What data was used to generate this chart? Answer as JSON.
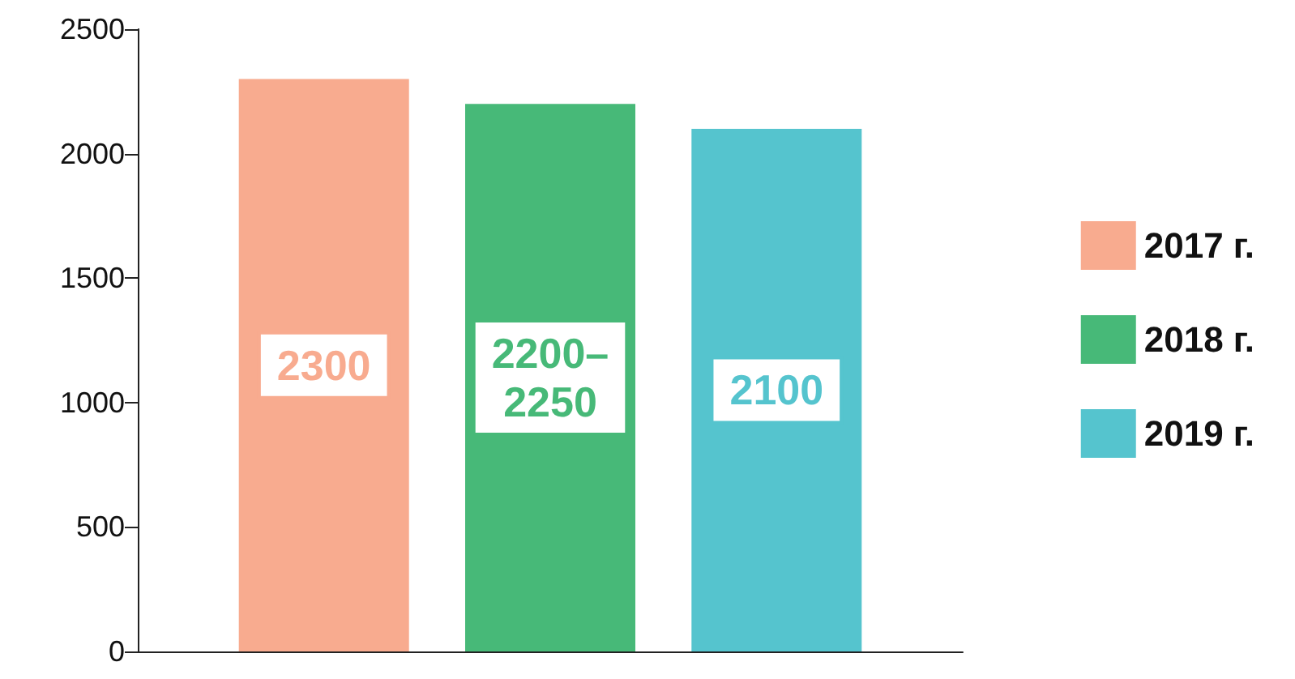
{
  "chart_data": {
    "type": "bar",
    "categories": [
      null
    ],
    "series": [
      {
        "name": "2017 г.",
        "color": "#f8ab8f",
        "values": [
          2300
        ],
        "value_labels": [
          "2300"
        ]
      },
      {
        "name": "2018 г.",
        "color": "#47b978",
        "values": [
          2200
        ],
        "value_labels": [
          "2200–2250"
        ]
      },
      {
        "name": "2019 г.",
        "color": "#55c4ce",
        "values": [
          2100
        ],
        "value_labels": [
          "2100"
        ]
      }
    ],
    "ylim": [
      0,
      2500
    ],
    "yticks": [
      0,
      500,
      1000,
      1500,
      2000,
      2500
    ],
    "grid": false,
    "legend": "right"
  }
}
